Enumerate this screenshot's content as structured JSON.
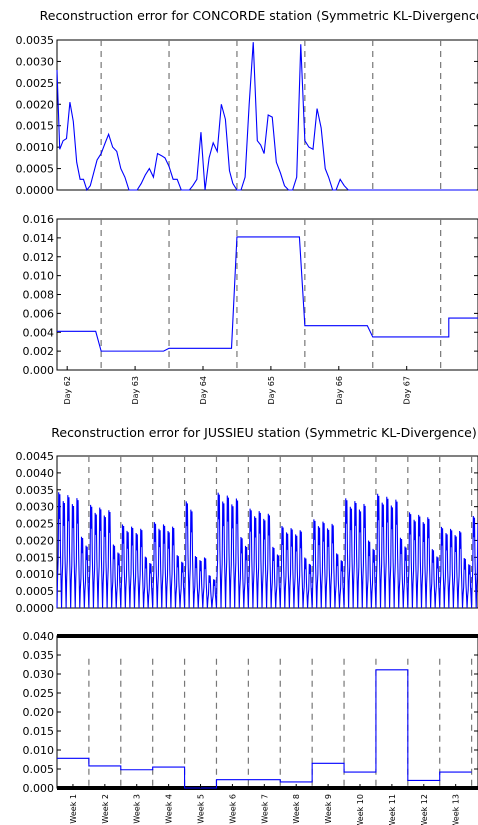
{
  "figure_titles": [
    "Reconstruction error for CONCORDE station (Symmetric KL-Divergence)",
    "Reconstruction error for JUSSIEU station (Symmetric KL-Divergence)"
  ],
  "colors": {
    "line": "#0000ff",
    "divider": "#777777",
    "axis": "#000000"
  },
  "chart_data": [
    {
      "id": "concorde-error",
      "type": "line",
      "title": "Reconstruction error for CONCORDE station (Symmetric KL-Divergence)",
      "xlim": [
        0,
        6.2
      ],
      "ylim": [
        0,
        0.0035
      ],
      "yticks": [
        "0.0000",
        "0.0005",
        "0.0010",
        "0.0015",
        "0.0020",
        "0.0025",
        "0.0030",
        "0.0035"
      ],
      "day_boundaries": [
        0.65,
        1.65,
        2.65,
        3.65,
        4.65,
        5.65
      ],
      "x": [
        0.0,
        0.04,
        0.09,
        0.14,
        0.19,
        0.24,
        0.29,
        0.34,
        0.39,
        0.44,
        0.49,
        0.54,
        0.59,
        0.65,
        0.71,
        0.76,
        0.82,
        0.88,
        0.94,
        1.0,
        1.06,
        1.12,
        1.18,
        1.24,
        1.3,
        1.36,
        1.42,
        1.48,
        1.54,
        1.59,
        1.65,
        1.71,
        1.77,
        1.83,
        1.89,
        1.95,
        2.0,
        2.06,
        2.12,
        2.18,
        2.24,
        2.3,
        2.36,
        2.42,
        2.48,
        2.54,
        2.59,
        2.65,
        2.71,
        2.77,
        2.83,
        2.89,
        2.95,
        3.0,
        3.05,
        3.11,
        3.17,
        3.23,
        3.29,
        3.35,
        3.41,
        3.47,
        3.53,
        3.59,
        3.65,
        3.71,
        3.77,
        3.83,
        3.89,
        3.95,
        4.0,
        4.06,
        4.11,
        4.17,
        4.23,
        4.29,
        4.35,
        4.41,
        4.47,
        4.53,
        4.59,
        4.65,
        4.71,
        4.77,
        4.83,
        4.89,
        4.95,
        5.0,
        5.06,
        5.12,
        5.18,
        5.24,
        5.3,
        5.36,
        5.42,
        5.48,
        5.54,
        5.59,
        5.65,
        5.71,
        5.77,
        5.83,
        5.89,
        5.95,
        6.0,
        6.06,
        6.12,
        6.18
      ],
      "y": [
        0.0028,
        0.00095,
        0.00115,
        0.0012,
        0.00205,
        0.0016,
        0.00065,
        0.00025,
        0.00025,
        0.0,
        0.0001,
        0.0004,
        0.0007,
        0.00085,
        0.0011,
        0.0013,
        0.001,
        0.0009,
        0.0005,
        0.0003,
        0.0,
        0.0,
        0.0,
        0.00015,
        0.00035,
        0.0005,
        0.0003,
        0.00085,
        0.0008,
        0.00075,
        0.00055,
        0.00025,
        0.00025,
        0.0,
        0.0,
        0.0,
        0.0001,
        0.00025,
        0.00135,
        0.0,
        0.00075,
        0.0011,
        0.0009,
        0.002,
        0.00165,
        0.00045,
        0.00015,
        0.0,
        0.0,
        0.0003,
        0.002,
        0.00345,
        0.00115,
        0.00105,
        0.00085,
        0.00175,
        0.0017,
        0.00065,
        0.0004,
        0.0001,
        0.0,
        0.0,
        0.0003,
        0.0034,
        0.00115,
        0.001,
        0.00095,
        0.0019,
        0.00145,
        0.0005,
        0.0003,
        0.0,
        0.0,
        0.00025,
        0.0001,
        0.0,
        0.0,
        0.0,
        0.0,
        0.0,
        0.0,
        0.0,
        0.0,
        0.0,
        0.0,
        0.0,
        0.0,
        0.0,
        0.0,
        0.0,
        0.0,
        0.0,
        0.0,
        0.0,
        0.0,
        0.0,
        0.0,
        0.0,
        0.0,
        0.0,
        0.0,
        0.0,
        0.0,
        0.0,
        0.0,
        0.0,
        0.0,
        0.0
      ]
    },
    {
      "id": "concorde-daily",
      "type": "line",
      "xlim": [
        0,
        6.2
      ],
      "ylim": [
        0,
        0.016
      ],
      "yticks": [
        "0.000",
        "0.002",
        "0.004",
        "0.006",
        "0.008",
        "0.010",
        "0.012",
        "0.014",
        "0.016"
      ],
      "day_boundaries": [
        0.65,
        1.65,
        2.65,
        3.65,
        4.65,
        5.65
      ],
      "x_labels": [
        "Day 62",
        "Day 63",
        "Day 64",
        "Day 65",
        "Day 66",
        "Day 67"
      ],
      "x_label_positions": [
        0.15,
        1.15,
        2.15,
        3.15,
        4.15,
        5.15
      ],
      "x": [
        0.0,
        0.57,
        0.65,
        1.57,
        1.65,
        2.57,
        2.65,
        3.57,
        3.65,
        4.57,
        4.65,
        5.57,
        5.65,
        5.77,
        5.77,
        6.2
      ],
      "y": [
        0.0041,
        0.0041,
        0.002,
        0.002,
        0.0023,
        0.0023,
        0.0141,
        0.0141,
        0.0047,
        0.0047,
        0.0035,
        0.0035,
        0.0035,
        0.0035,
        0.0055,
        0.0055
      ]
    },
    {
      "id": "jussieu-error",
      "type": "line",
      "title": "Reconstruction error for JUSSIEU station (Symmetric KL-Divergence)",
      "xlim": [
        0,
        13.2
      ],
      "ylim": [
        0,
        0.0045
      ],
      "yticks": [
        "0.0000",
        "0.0005",
        "0.0010",
        "0.0015",
        "0.0020",
        "0.0025",
        "0.0030",
        "0.0035",
        "0.0040",
        "0.0045"
      ],
      "week_boundaries": [
        1,
        2,
        3,
        4,
        5,
        6,
        7,
        8,
        9,
        10,
        11,
        12,
        13
      ],
      "day_peaks": [
        0.0039,
        0.0036,
        0.0038,
        0.0035,
        0.0037,
        0.0024,
        0.0021
      ],
      "note": "generated daily peaks per week"
    },
    {
      "id": "jussieu-weekly",
      "type": "line",
      "xlim": [
        0,
        13.2
      ],
      "ylim": [
        0,
        0.04
      ],
      "yticks": [
        "0.000",
        "0.005",
        "0.010",
        "0.015",
        "0.020",
        "0.025",
        "0.030",
        "0.035",
        "0.040"
      ],
      "week_boundaries": [
        1,
        2,
        3,
        4,
        5,
        6,
        7,
        8,
        9,
        10,
        11,
        12,
        13
      ],
      "x_labels": [
        "Week 1",
        "Week 2",
        "Week 3",
        "Week 4",
        "Week 5",
        "Week 6",
        "Week 7",
        "Week 8",
        "Week 9",
        "Week 10",
        "Week 11",
        "Week 12",
        "Week 13"
      ],
      "x_label_positions": [
        0.5,
        1.5,
        2.5,
        3.5,
        4.5,
        5.5,
        6.5,
        7.5,
        8.5,
        9.5,
        10.5,
        11.5,
        12.5
      ],
      "weekly_values": [
        0.0078,
        0.0058,
        0.0048,
        0.0055,
        0.0,
        0.0022,
        0.0022,
        0.0016,
        0.0065,
        0.0042,
        0.0311,
        0.002,
        0.0042
      ]
    }
  ]
}
